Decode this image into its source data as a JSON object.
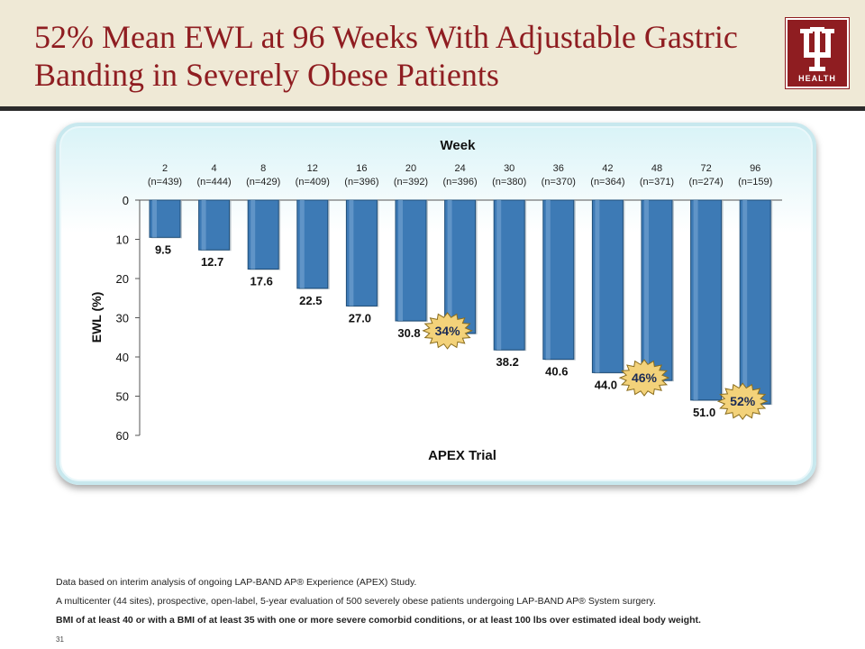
{
  "slide": {
    "title_line1": "52% Mean EWL at 96 Weeks With Adjustable Gastric",
    "title_line2": "Banding in Severely Obese Patients",
    "logo_text": "HEALTH",
    "page_number": "31",
    "footnotes": [
      "Data based on interim analysis of ongoing LAP-BAND AP® Experience (APEX) Study.",
      "A multicenter (44 sites), prospective, open-label, 5-year evaluation of 500 severely obese patients undergoing LAP-BAND AP® System surgery.",
      "BMI of at least 40 or with a BMI of at least 35 with one or more severe comorbid conditions, or at least 100 lbs over estimated ideal body weight."
    ]
  },
  "colors": {
    "brand": "#8f1d21",
    "header_bg": "#efe9d6",
    "bar": "#3d7ab5",
    "badge": "#f3d27a"
  },
  "chart_data": {
    "type": "bar",
    "title": "Week",
    "xlabel": "APEX Trial",
    "ylabel": "EWL (%)",
    "ylim": [
      0,
      60
    ],
    "yticks": [
      0,
      10,
      20,
      30,
      40,
      50,
      60
    ],
    "y_inverted": true,
    "categories": [
      "2",
      "4",
      "8",
      "12",
      "16",
      "20",
      "24",
      "30",
      "36",
      "42",
      "48",
      "72",
      "96"
    ],
    "n_labels": [
      "(n=439)",
      "(n=444)",
      "(n=429)",
      "(n=409)",
      "(n=396)",
      "(n=392)",
      "(n=396)",
      "(n=380)",
      "(n=370)",
      "(n=364)",
      "(n=371)",
      "(n=274)",
      "(n=159)"
    ],
    "values": [
      9.5,
      12.7,
      17.6,
      22.5,
      27.0,
      30.8,
      34,
      38.2,
      40.6,
      44.0,
      46,
      51.0,
      52
    ],
    "data_labels": [
      "9.5",
      "12.7",
      "17.6",
      "22.5",
      "27.0",
      "30.8",
      "",
      "38.2",
      "40.6",
      "44.0",
      "",
      "51.0",
      ""
    ],
    "callouts": [
      {
        "category": "24",
        "label": "34%"
      },
      {
        "category": "48",
        "label": "46%"
      },
      {
        "category": "96",
        "label": "52%"
      }
    ],
    "grid": false
  }
}
